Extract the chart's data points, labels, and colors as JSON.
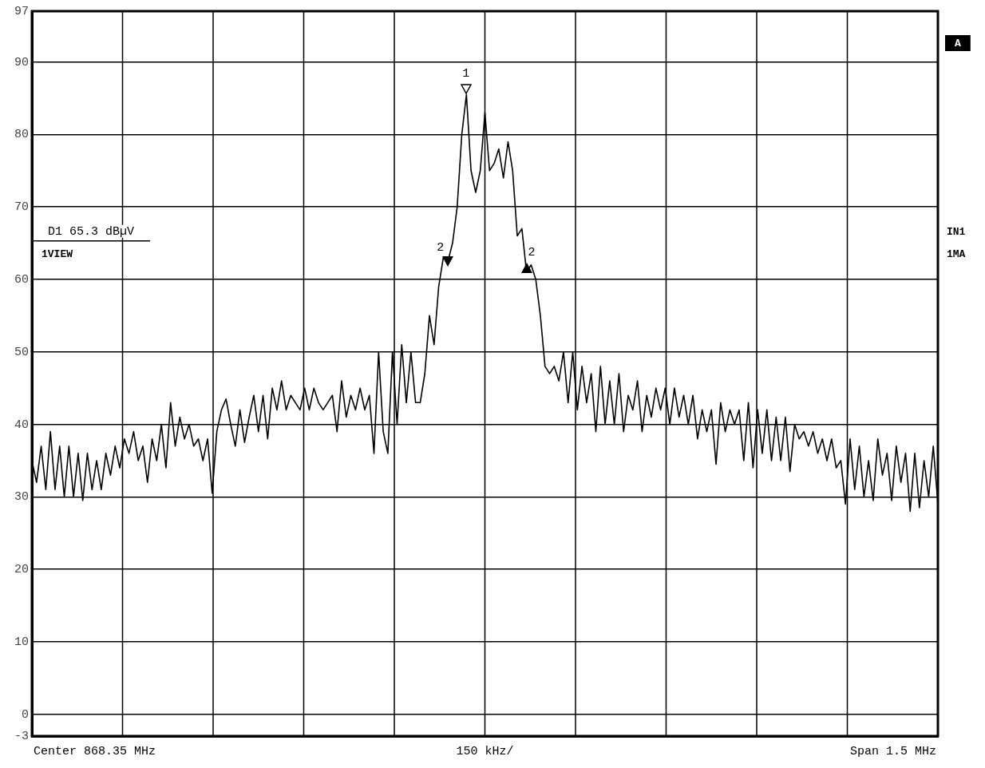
{
  "chart_data": {
    "type": "line",
    "ylim": [
      -3,
      97
    ],
    "categories": [
      null,
      null,
      null,
      null,
      null,
      null,
      null,
      null,
      null,
      null,
      null,
      null,
      null,
      null,
      null,
      null,
      null,
      null,
      null,
      null,
      null,
      null,
      null,
      null,
      null,
      null,
      null,
      null,
      null,
      null,
      null,
      null,
      null,
      null,
      null,
      null,
      null,
      null,
      null,
      null,
      null,
      null,
      null,
      null,
      null,
      null,
      null,
      null,
      null,
      null,
      null,
      null,
      null,
      null,
      null,
      null,
      null,
      null,
      null,
      null,
      null,
      null,
      null,
      null,
      null,
      null,
      null,
      null,
      null,
      null,
      null,
      null,
      null,
      null,
      null,
      null,
      null,
      null,
      null,
      null,
      null,
      null,
      null,
      null,
      null,
      null,
      null,
      null,
      null,
      null,
      null,
      null,
      null,
      null,
      null,
      null,
      null,
      null,
      null,
      null,
      null,
      null,
      null,
      null,
      null,
      null,
      null,
      null,
      null,
      null,
      null,
      null,
      null,
      null,
      null,
      null,
      null,
      null,
      null,
      null,
      null,
      null,
      null,
      null,
      null,
      null,
      null,
      null,
      null,
      null,
      null,
      null,
      null,
      null,
      null,
      null,
      null,
      null,
      null,
      null,
      null,
      null,
      null,
      null,
      null,
      null,
      null,
      null,
      null,
      null,
      null,
      null,
      null,
      null,
      null,
      null,
      null,
      null,
      null,
      null,
      null,
      null,
      null,
      null,
      null,
      null,
      null,
      null,
      null,
      null,
      null,
      null,
      null,
      null,
      null,
      null,
      null,
      null,
      null,
      null,
      null,
      null,
      null,
      null,
      null,
      null,
      null,
      null,
      null,
      null,
      null,
      null,
      null,
      null,
      null,
      null,
      null
    ],
    "yticks": [
      -3,
      0,
      10,
      20,
      30,
      40,
      50,
      60,
      70,
      80,
      90,
      97
    ],
    "tick_labels": "y",
    "grid": true,
    "legend": false,
    "marker": "none",
    "line_style": "solid",
    "series": [
      {
        "color": "#000000",
        "values": [
          35,
          32,
          37,
          31,
          39,
          31,
          37,
          30,
          37,
          30,
          36,
          29.5,
          36,
          31,
          35,
          31,
          36,
          33,
          37,
          34,
          38,
          36,
          39,
          35,
          37,
          32,
          38,
          35,
          40,
          34,
          43,
          37,
          41,
          38,
          40,
          37,
          38,
          35,
          38,
          30.5,
          39,
          42,
          43.5,
          40,
          37,
          42,
          37.5,
          41,
          44,
          39,
          44,
          38,
          45,
          42,
          46,
          42,
          44,
          43,
          42,
          45,
          42,
          45,
          43,
          42,
          43,
          44,
          39,
          46,
          41,
          44,
          42,
          45,
          42,
          44,
          36,
          50,
          39,
          36,
          50,
          40,
          51,
          43,
          50,
          43,
          43,
          47,
          55,
          51,
          59,
          63,
          62.5,
          65,
          70,
          80,
          85.5,
          75,
          72,
          75,
          83,
          75,
          76,
          78,
          74,
          79,
          75,
          66,
          67,
          61,
          62,
          60,
          55,
          48,
          47,
          48,
          46,
          50,
          43,
          50,
          42,
          48,
          43,
          47,
          39,
          48,
          40,
          46,
          40,
          47,
          39,
          44,
          42,
          46,
          39,
          44,
          41,
          45,
          42,
          45,
          40,
          45,
          41,
          44,
          40,
          44,
          38,
          42,
          39,
          42,
          34.5,
          43,
          39,
          42,
          40,
          42,
          35,
          43,
          34,
          42,
          36,
          42,
          35,
          41,
          35,
          41,
          33.5,
          40,
          38,
          39,
          37,
          39,
          36,
          38,
          35,
          38,
          34,
          35,
          29,
          38,
          31,
          37,
          30,
          35,
          29.5,
          38,
          33,
          36,
          29.5,
          37,
          32,
          36,
          28,
          36,
          28.5,
          35,
          30,
          37,
          29
        ]
      }
    ],
    "ref_lines": [
      {
        "axis": "y",
        "value": 65.3,
        "label": "D1 65.3 dBµV"
      }
    ],
    "annotations": [
      "Center 868.35 MHz",
      "150 kHz/",
      "Span 1.5 MHz",
      "1VIEW",
      "IN1",
      "1MA",
      "A",
      "1",
      "2",
      "2"
    ]
  }
}
